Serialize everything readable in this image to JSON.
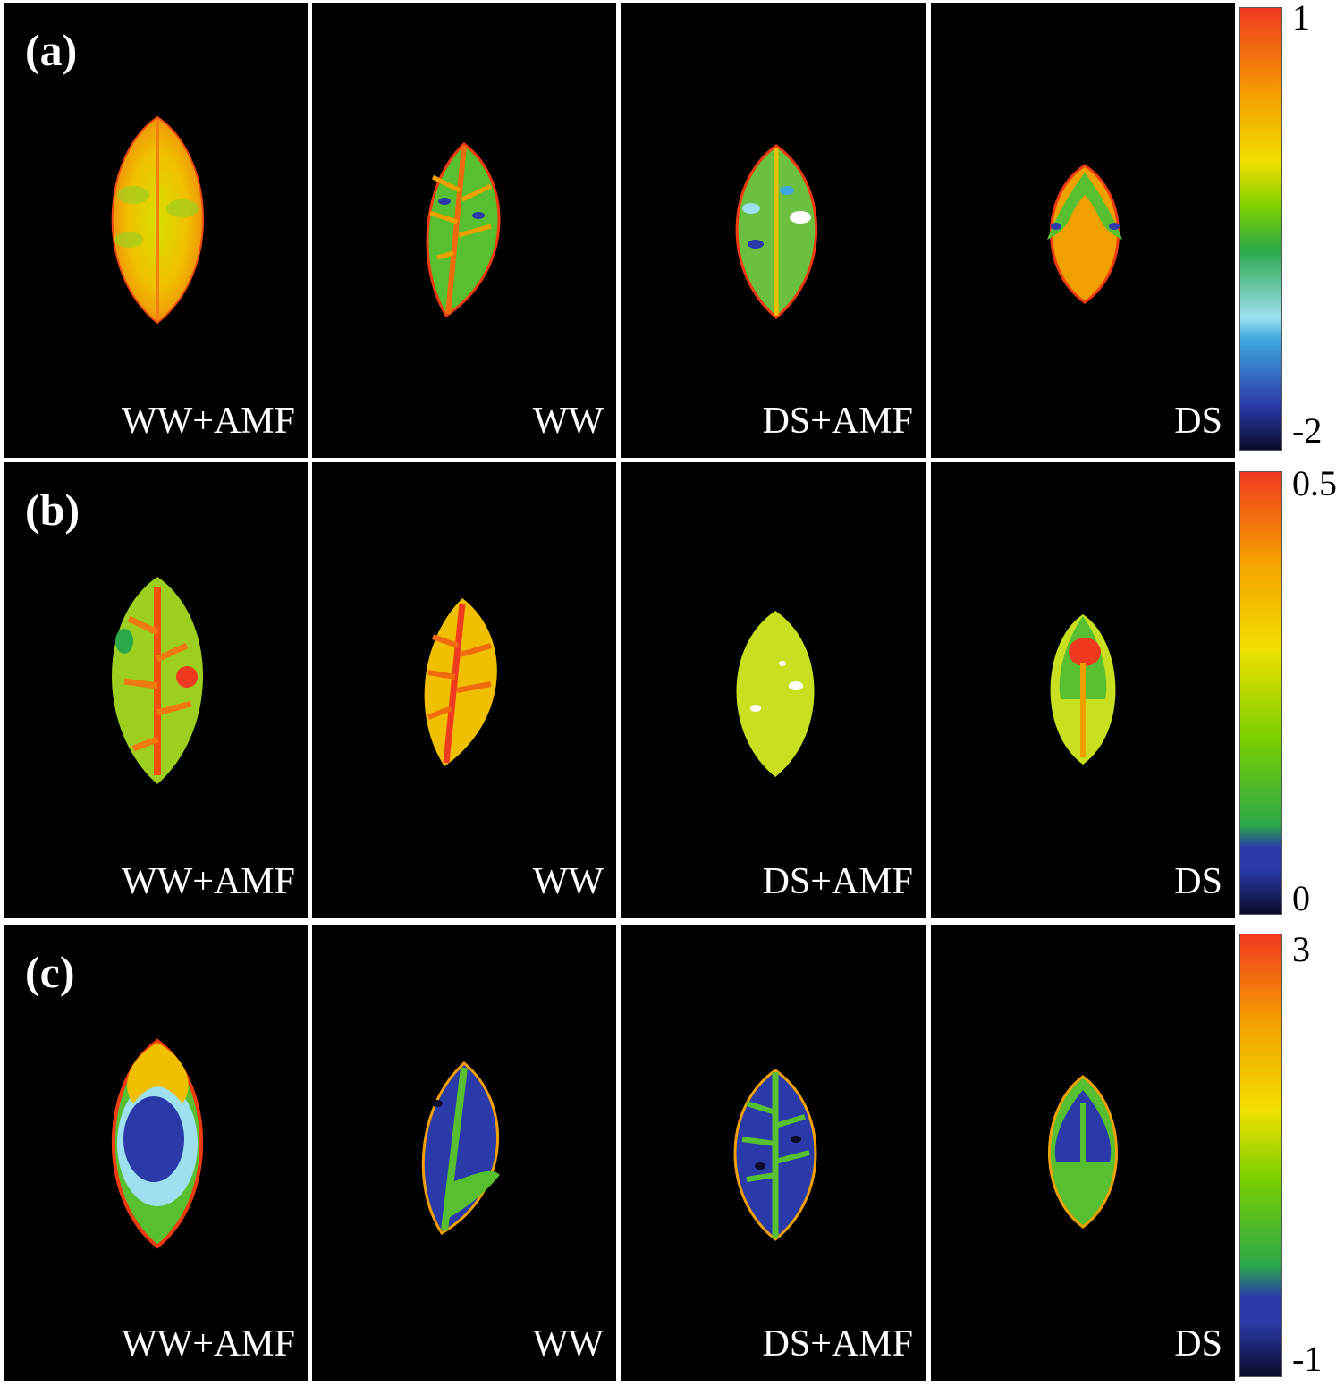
{
  "rows": [
    {
      "label": "(a)",
      "panels": [
        "WW+AMF",
        "WW",
        "DS+AMF",
        "DS"
      ],
      "colorbar": {
        "max": "1",
        "min": "-2"
      }
    },
    {
      "label": "(b)",
      "panels": [
        "WW+AMF",
        "WW",
        "DS+AMF",
        "DS"
      ],
      "colorbar": {
        "max": "0.5",
        "min": "0"
      }
    },
    {
      "label": "(c)",
      "panels": [
        "WW+AMF",
        "WW",
        "DS+AMF",
        "DS"
      ],
      "colorbar": {
        "max": "3",
        "min": "-1"
      }
    }
  ],
  "colormap": [
    "#0a0a2a",
    "#2a3aa8",
    "#3fa8e0",
    "#9ee0f0",
    "#2aa84a",
    "#7cd000",
    "#f0e000",
    "#f5a000",
    "#f03a20"
  ]
}
